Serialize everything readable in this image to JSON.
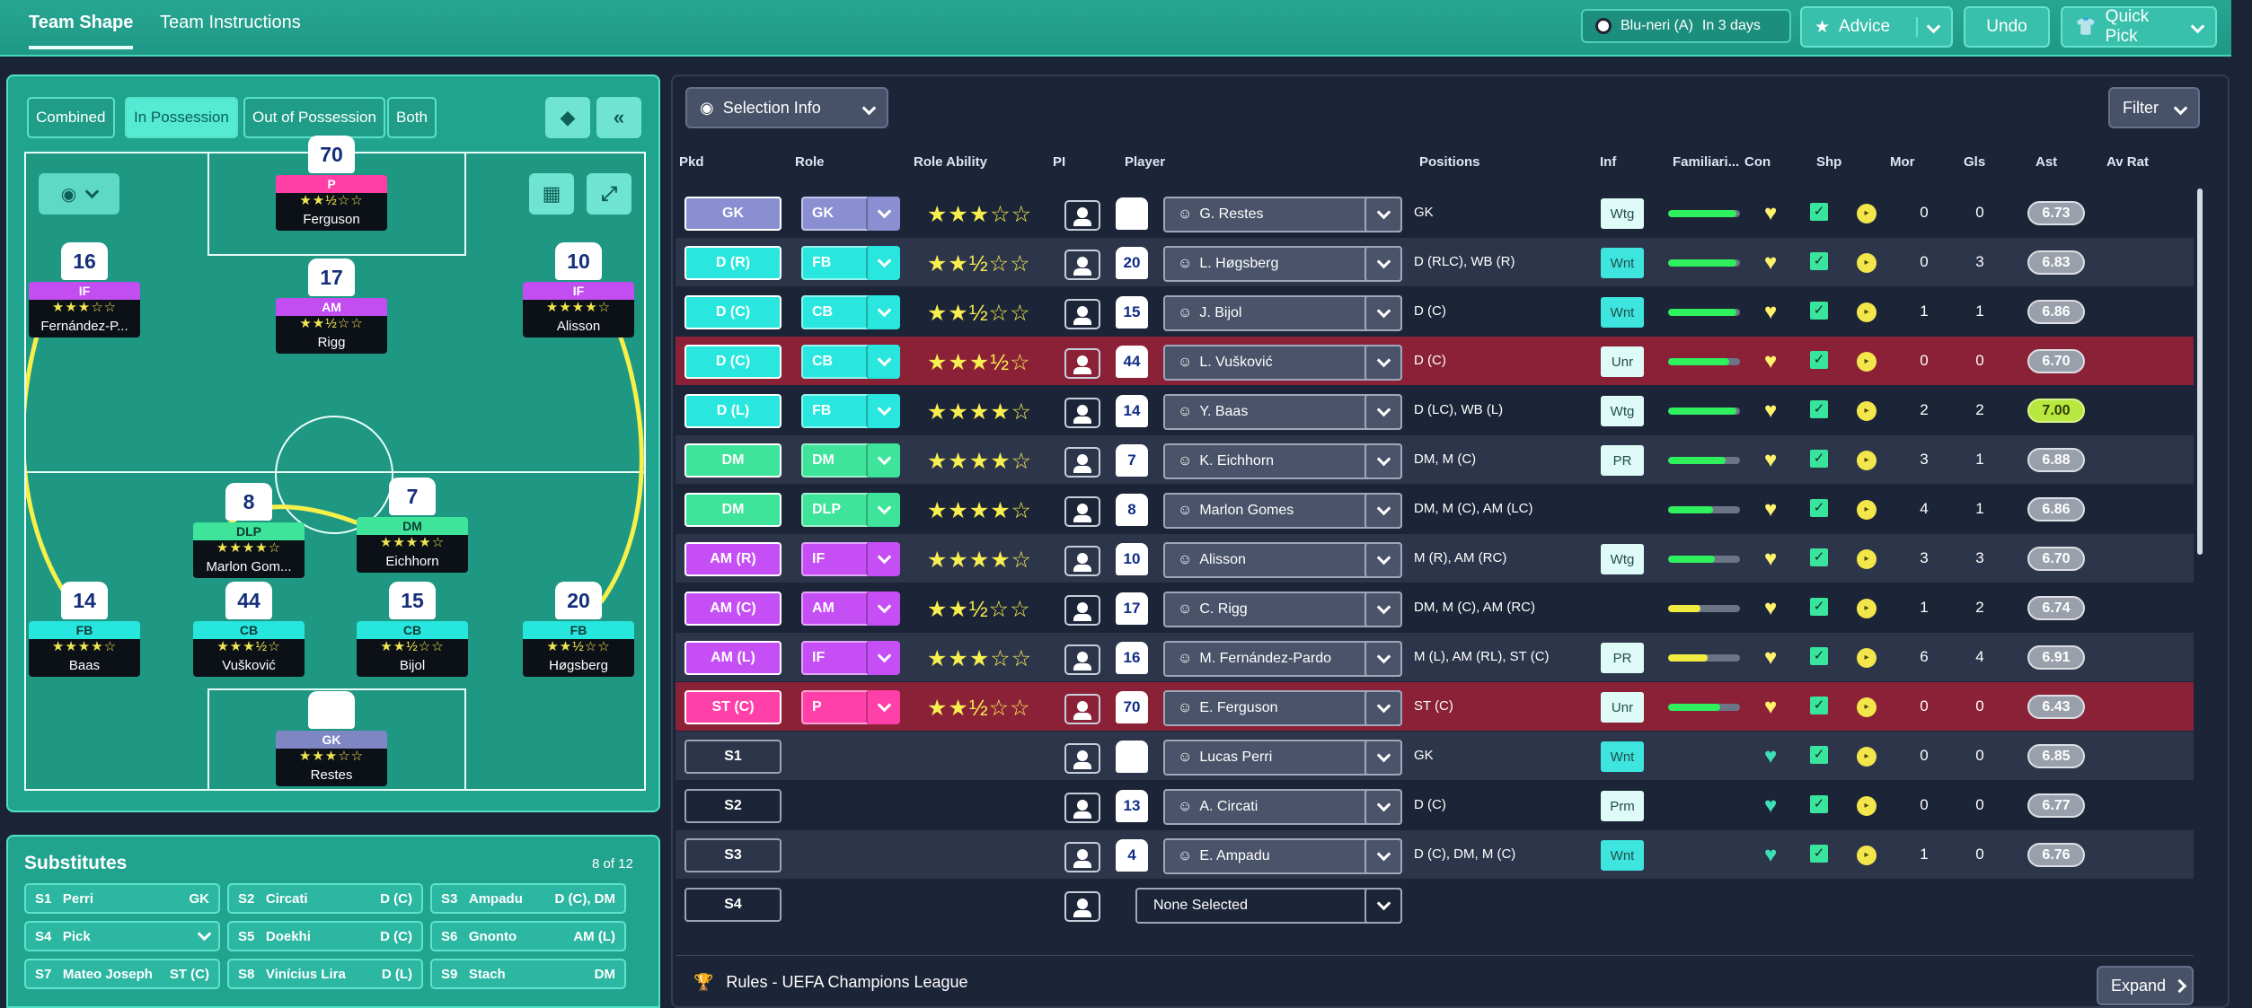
{
  "tabs": [
    {
      "label": "Team Shape"
    },
    {
      "label": "Team Instructions"
    }
  ],
  "toolbar": {
    "next_match": "Blu-neri (A)",
    "next_match_when": "In 3 days",
    "advice": "Advice",
    "undo": "Undo",
    "quick_pick": "Quick Pick"
  },
  "view_tabs": [
    {
      "label": "Combined"
    },
    {
      "label": "In Possession"
    },
    {
      "label": "Out of Possession"
    },
    {
      "label": "Both"
    }
  ],
  "pitch_players": [
    {
      "num": "70",
      "role": "P",
      "stars": "★★½☆☆",
      "name": "Ferguson"
    },
    {
      "num": "16",
      "role": "IF",
      "stars": "★★★☆☆",
      "name": "Fernández-P..."
    },
    {
      "num": "17",
      "role": "AM",
      "stars": "★★½☆☆",
      "name": "Rigg"
    },
    {
      "num": "10",
      "role": "IF",
      "stars": "★★★★☆",
      "name": "Alisson"
    },
    {
      "num": "8",
      "role": "DLP",
      "stars": "★★★★☆",
      "name": "Marlon Gom..."
    },
    {
      "num": "7",
      "role": "DM",
      "stars": "★★★★☆",
      "name": "Eichhorn"
    },
    {
      "num": "14",
      "role": "FB",
      "stars": "★★★★☆",
      "name": "Baas"
    },
    {
      "num": "44",
      "role": "CB",
      "stars": "★★★½☆",
      "name": "Vušković"
    },
    {
      "num": "15",
      "role": "CB",
      "stars": "★★½☆☆",
      "name": "Bijol"
    },
    {
      "num": "20",
      "role": "FB",
      "stars": "★★½☆☆",
      "name": "Høgsberg"
    },
    {
      "num": "",
      "role": "GK",
      "stars": "★★★☆☆",
      "name": "Restes"
    }
  ],
  "substitutes": {
    "title": "Substitutes",
    "count": "8 of 12",
    "items": [
      {
        "slot": "S1",
        "name": "Perri",
        "pos": "GK"
      },
      {
        "slot": "S2",
        "name": "Circati",
        "pos": "D (C)"
      },
      {
        "slot": "S3",
        "name": "Ampadu",
        "pos": "D (C), DM"
      },
      {
        "slot": "S4",
        "name": "Pick",
        "pos": ""
      },
      {
        "slot": "S5",
        "name": "Doekhi",
        "pos": "D (C)"
      },
      {
        "slot": "S6",
        "name": "Gnonto",
        "pos": "AM (L)"
      },
      {
        "slot": "S7",
        "name": "Mateo Joseph",
        "pos": "ST (C)"
      },
      {
        "slot": "S8",
        "name": "Vinícius Lira",
        "pos": "D (L)"
      },
      {
        "slot": "S9",
        "name": "Stach",
        "pos": "DM"
      }
    ]
  },
  "selection": {
    "label": "Selection Info",
    "filter": "Filter"
  },
  "columns": [
    "Pkd",
    "Role",
    "Role Ability",
    "PI",
    "Player",
    "Positions",
    "Inf",
    "Familiari...",
    "Con",
    "Shp",
    "Mor",
    "Gls",
    "Ast",
    "Av Rat"
  ],
  "rows": [
    {
      "pkd": "GK",
      "role": "GK",
      "stars": "★★★☆☆",
      "num": "",
      "player": "G. Restes",
      "positions": "GK",
      "inf": "Wtg",
      "fam": 0.95,
      "gls": "0",
      "ast": "0",
      "rat": "6.73",
      "color": "#8a8fd1"
    },
    {
      "pkd": "D (R)",
      "role": "FB",
      "stars": "★★½☆☆",
      "num": "20",
      "player": "L. Høgsberg",
      "positions": "D (RLC), WB (R)",
      "inf": "Wnt",
      "fam": 0.95,
      "gls": "0",
      "ast": "3",
      "rat": "6.83",
      "color": "#29e7de"
    },
    {
      "pkd": "D (C)",
      "role": "CB",
      "stars": "★★½☆☆",
      "num": "15",
      "player": "J. Bijol",
      "positions": "D (C)",
      "inf": "Wnt",
      "fam": 0.95,
      "gls": "1",
      "ast": "1",
      "rat": "6.86",
      "color": "#29e7de"
    },
    {
      "pkd": "D (C)",
      "role": "CB",
      "stars": "★★★½☆",
      "num": "44",
      "player": "L. Vušković",
      "positions": "D (C)",
      "inf": "Unr",
      "fam": 0.85,
      "gls": "0",
      "ast": "0",
      "rat": "6.70",
      "color": "#29e7de"
    },
    {
      "pkd": "D (L)",
      "role": "FB",
      "stars": "★★★★☆",
      "num": "14",
      "player": "Y. Baas",
      "positions": "D (LC), WB (L)",
      "inf": "Wtg",
      "fam": 0.95,
      "gls": "2",
      "ast": "2",
      "rat": "7.00",
      "color": "#29e7de"
    },
    {
      "pkd": "DM",
      "role": "DM",
      "stars": "★★★★☆",
      "num": "7",
      "player": "K. Eichhorn",
      "positions": "DM, M (C)",
      "inf": "PR",
      "fam": 0.8,
      "gls": "3",
      "ast": "1",
      "rat": "6.88",
      "color": "#3ee49a"
    },
    {
      "pkd": "DM",
      "role": "DLP",
      "stars": "★★★★☆",
      "num": "8",
      "player": "Marlon Gomes",
      "positions": "DM, M (C), AM (LC)",
      "inf": "",
      "fam": 0.62,
      "gls": "4",
      "ast": "1",
      "rat": "6.86",
      "color": "#3ee49a"
    },
    {
      "pkd": "AM (R)",
      "role": "IF",
      "stars": "★★★★☆",
      "num": "10",
      "player": "Alisson",
      "positions": "M (R), AM (RC)",
      "inf": "Wtg",
      "fam": 0.65,
      "gls": "3",
      "ast": "3",
      "rat": "6.70",
      "color": "#c54ef4"
    },
    {
      "pkd": "AM (C)",
      "role": "AM",
      "stars": "★★½☆☆",
      "num": "17",
      "player": "C. Rigg",
      "positions": "DM, M (C), AM (RC)",
      "inf": "",
      "fam": 0.45,
      "gls": "1",
      "ast": "2",
      "rat": "6.74",
      "color": "#c54ef4"
    },
    {
      "pkd": "AM (L)",
      "role": "IF",
      "stars": "★★★☆☆",
      "num": "16",
      "player": "M. Fernández-Pardo",
      "positions": "M (L), AM (RL), ST (C)",
      "inf": "PR",
      "fam": 0.55,
      "gls": "6",
      "ast": "4",
      "rat": "6.91",
      "color": "#c54ef4"
    },
    {
      "pkd": "ST (C)",
      "role": "P",
      "stars": "★★½☆☆",
      "num": "70",
      "player": "E. Ferguson",
      "positions": "ST (C)",
      "inf": "Unr",
      "fam": 0.72,
      "gls": "0",
      "ast": "0",
      "rat": "6.43",
      "color": "#ff40a8"
    },
    {
      "pkd": "S1",
      "role": "",
      "stars": "",
      "num": "",
      "player": "Lucas Perri",
      "positions": "GK",
      "inf": "Wnt",
      "fam": null,
      "gls": "0",
      "ast": "0",
      "rat": "6.85",
      "color": ""
    },
    {
      "pkd": "S2",
      "role": "",
      "stars": "",
      "num": "13",
      "player": "A. Circati",
      "positions": "D (C)",
      "inf": "Prm",
      "fam": null,
      "gls": "0",
      "ast": "0",
      "rat": "6.77",
      "color": ""
    },
    {
      "pkd": "S3",
      "role": "",
      "stars": "",
      "num": "4",
      "player": "E. Ampadu",
      "positions": "D (C), DM, M (C)",
      "inf": "Wnt",
      "fam": null,
      "gls": "1",
      "ast": "0",
      "rat": "6.76",
      "color": ""
    },
    {
      "pkd": "S4",
      "role": "",
      "stars": "",
      "num": "",
      "player": "None Selected",
      "positions": "",
      "inf": "",
      "fam": null,
      "gls": "",
      "ast": "",
      "rat": "",
      "color": ""
    }
  ],
  "footer": {
    "rules": "Rules - UEFA Champions League",
    "expand": "Expand"
  }
}
